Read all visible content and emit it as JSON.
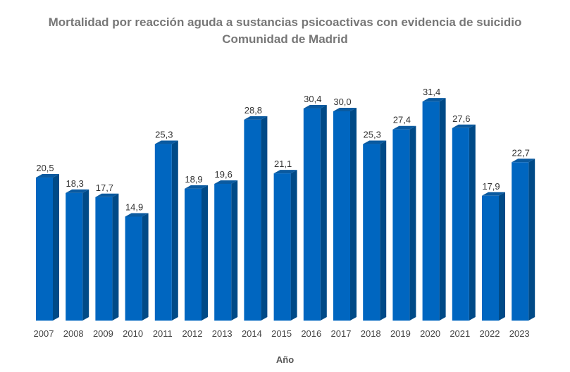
{
  "chart_data": {
    "type": "bar",
    "title": "Mortalidad por reacción aguda a sustancias psicoactivas con evidencia de suicidio",
    "subtitle": "Comunidad de Madrid",
    "xlabel": "Año",
    "ylabel": "",
    "categories": [
      "2007",
      "2008",
      "2009",
      "2010",
      "2011",
      "2012",
      "2013",
      "2014",
      "2015",
      "2016",
      "2017",
      "2018",
      "2019",
      "2020",
      "2021",
      "2022",
      "2023"
    ],
    "values": [
      20.5,
      18.3,
      17.7,
      14.9,
      25.3,
      18.9,
      19.6,
      28.8,
      21.1,
      30.4,
      30.0,
      25.3,
      27.4,
      31.4,
      27.6,
      17.9,
      22.7
    ],
    "data_labels": [
      "20,5",
      "18,3",
      "17,7",
      "14,9",
      "25,3",
      "18,9",
      "19,6",
      "28,8",
      "21,1",
      "30,4",
      "30,0",
      "25,3",
      "27,4",
      "31,4",
      "27,6",
      "17,9",
      "22,7"
    ],
    "ylim": [
      0,
      35
    ],
    "grid": false,
    "legend": "none",
    "style": "3d",
    "colors": {
      "front": "#0066C0",
      "side": "#004A87",
      "top": "#0A5AA0"
    }
  }
}
